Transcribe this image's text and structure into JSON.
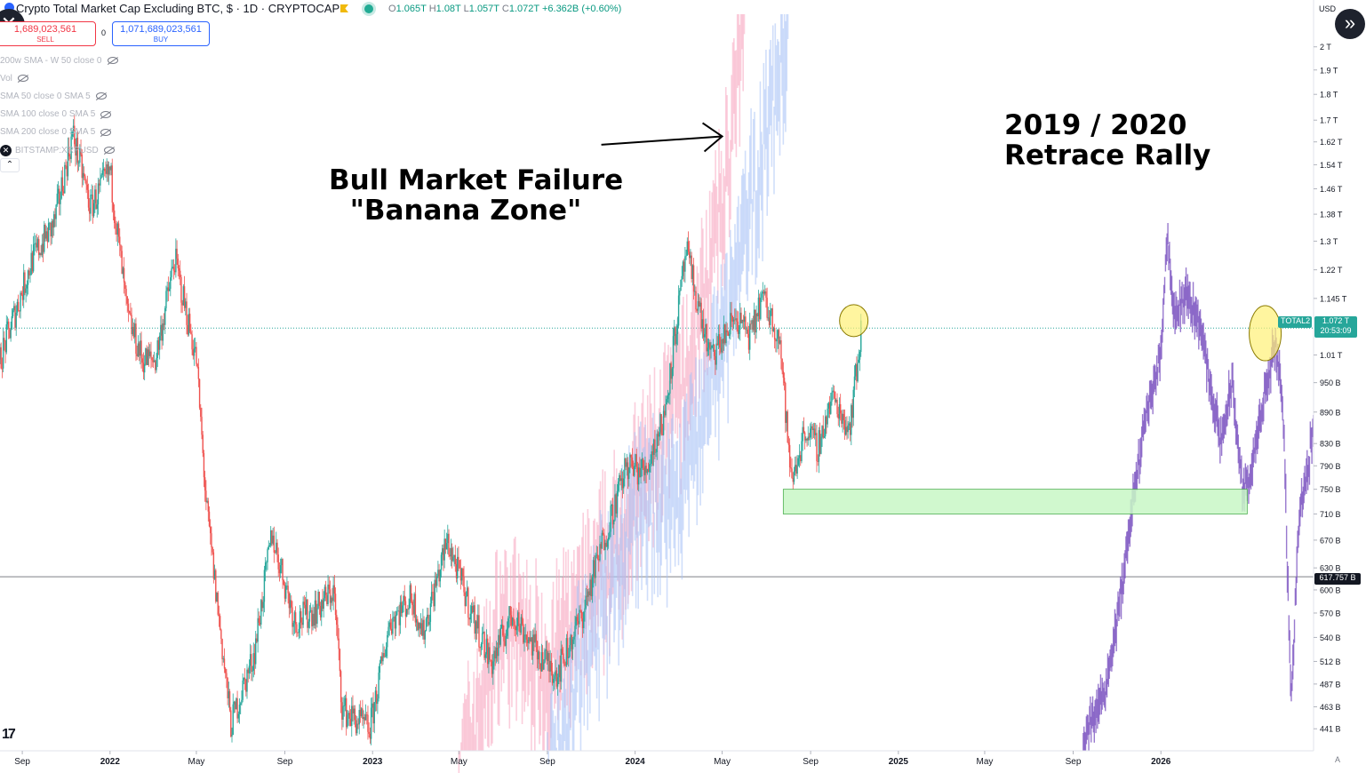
{
  "header": {
    "title": "Crypto Total Market Cap Excluding BTC, $ · 1D · CRYPTOCAP",
    "ohlc": [
      {
        "k": "O",
        "v": "1.065T"
      },
      {
        "k": "H",
        "v": "1.08T"
      },
      {
        "k": "L",
        "v": "1.057T"
      },
      {
        "k": "C",
        "v": "1.072T"
      }
    ],
    "change": "+6.362B (+0.60%)"
  },
  "trade": {
    "sell_price": "1,689,023,561",
    "sell_label": "SELL",
    "spread": "0",
    "buy_price": "1,071,689,023,561",
    "buy_label": "BUY"
  },
  "indicators": [
    {
      "label": "200w SMA - W 50 close 0"
    },
    {
      "label": "Vol"
    },
    {
      "label": "SMA 50 close 0 SMA 5"
    },
    {
      "label": "SMA 100 close 0 SMA 5"
    },
    {
      "label": "SMA 200 close 0 SMA 5"
    },
    {
      "label": "BITSTAMP:XRPUSD"
    }
  ],
  "collapse_icon": "chevron-up-icon",
  "annotations": {
    "banana_line1": "Bull Market Failure",
    "banana_line2": "\"Banana Zone\"",
    "retrace_line1": "2019 / 2020",
    "retrace_line2": "Retrace Rally"
  },
  "price_axis": {
    "currency": "USD",
    "symbol_tag": "TOTAL2",
    "last_price": "1.072 T",
    "countdown": "20:53:09",
    "level_tag": "617.757 B",
    "auto_label": "A"
  },
  "colors": {
    "up": "#26a69a",
    "down": "#ef5350",
    "ghost_pink": "#f7a6c0",
    "ghost_blue": "#a9c3f5",
    "projection": "#7e57c2",
    "zone_fill": "#c8f7c5",
    "zone_border": "#4caf50",
    "circle_fill": "#fff176"
  },
  "chart_data": {
    "type": "candlestick",
    "scale": "log",
    "ylim": [
      420000000000,
      2150000000000
    ],
    "x_range": [
      "2021-08-01",
      "2026-07-31"
    ],
    "y_ticks": [
      {
        "label": "2 T",
        "v": 2000000000000
      },
      {
        "label": "1.9 T",
        "v": 1900000000000
      },
      {
        "label": "1.8 T",
        "v": 1800000000000
      },
      {
        "label": "1.7 T",
        "v": 1700000000000
      },
      {
        "label": "1.62 T",
        "v": 1620000000000
      },
      {
        "label": "1.54 T",
        "v": 1540000000000
      },
      {
        "label": "1.46 T",
        "v": 1460000000000
      },
      {
        "label": "1.38 T",
        "v": 1380000000000
      },
      {
        "label": "1.3 T",
        "v": 1300000000000
      },
      {
        "label": "1.22 T",
        "v": 1220000000000
      },
      {
        "label": "1.145 T",
        "v": 1145000000000
      },
      {
        "label": "1.01 T",
        "v": 1010000000000
      },
      {
        "label": "950 B",
        "v": 950000000000
      },
      {
        "label": "890 B",
        "v": 890000000000
      },
      {
        "label": "830 B",
        "v": 830000000000
      },
      {
        "label": "790 B",
        "v": 790000000000
      },
      {
        "label": "750 B",
        "v": 750000000000
      },
      {
        "label": "710 B",
        "v": 710000000000
      },
      {
        "label": "670 B",
        "v": 670000000000
      },
      {
        "label": "630 B",
        "v": 630000000000
      },
      {
        "label": "600 B",
        "v": 600000000000
      },
      {
        "label": "570 B",
        "v": 570000000000
      },
      {
        "label": "540 B",
        "v": 540000000000
      },
      {
        "label": "512 B",
        "v": 512000000000
      },
      {
        "label": "487 B",
        "v": 487000000000
      },
      {
        "label": "463 B",
        "v": 463000000000
      },
      {
        "label": "441 B",
        "v": 441000000000
      }
    ],
    "x_ticks": [
      {
        "label": "Sep",
        "date": "2021-09-01",
        "bold": false
      },
      {
        "label": "2022",
        "date": "2022-01-01",
        "bold": true
      },
      {
        "label": "May",
        "date": "2022-05-01",
        "bold": false
      },
      {
        "label": "Sep",
        "date": "2022-09-01",
        "bold": false
      },
      {
        "label": "2023",
        "date": "2023-01-01",
        "bold": true
      },
      {
        "label": "May",
        "date": "2023-05-01",
        "bold": false
      },
      {
        "label": "Sep",
        "date": "2023-09-01",
        "bold": false
      },
      {
        "label": "2024",
        "date": "2024-01-01",
        "bold": true
      },
      {
        "label": "May",
        "date": "2024-05-01",
        "bold": false
      },
      {
        "label": "Sep",
        "date": "2024-09-01",
        "bold": false
      },
      {
        "label": "2025",
        "date": "2025-01-01",
        "bold": true
      },
      {
        "label": "May",
        "date": "2025-05-01",
        "bold": false
      },
      {
        "label": "Sep",
        "date": "2025-09-01",
        "bold": false
      },
      {
        "label": "2026",
        "date": "2026-01-01",
        "bold": true
      }
    ],
    "price_path": [
      [
        "2021-08-01",
        1000000000000
      ],
      [
        "2021-09-15",
        1250000000000
      ],
      [
        "2021-10-15",
        1350000000000
      ],
      [
        "2021-11-10",
        1650000000000
      ],
      [
        "2021-12-05",
        1400000000000
      ],
      [
        "2022-01-01",
        1520000000000
      ],
      [
        "2022-01-25",
        1100000000000
      ],
      [
        "2022-02-15",
        1000000000000
      ],
      [
        "2022-03-05",
        1000000000000
      ],
      [
        "2022-04-01",
        1250000000000
      ],
      [
        "2022-05-01",
        1000000000000
      ],
      [
        "2022-05-15",
        720000000000
      ],
      [
        "2022-06-18",
        445000000000
      ],
      [
        "2022-07-20",
        520000000000
      ],
      [
        "2022-08-14",
        680000000000
      ],
      [
        "2022-09-15",
        560000000000
      ],
      [
        "2022-10-15",
        575000000000
      ],
      [
        "2022-11-08",
        600000000000
      ],
      [
        "2022-11-20",
        460000000000
      ],
      [
        "2022-12-28",
        440000000000
      ],
      [
        "2023-01-25",
        560000000000
      ],
      [
        "2023-02-25",
        590000000000
      ],
      [
        "2023-03-12",
        545000000000
      ],
      [
        "2023-04-15",
        670000000000
      ],
      [
        "2023-05-15",
        580000000000
      ],
      [
        "2023-06-15",
        510000000000
      ],
      [
        "2023-07-15",
        570000000000
      ],
      [
        "2023-08-20",
        520000000000
      ],
      [
        "2023-09-15",
        500000000000
      ],
      [
        "2023-10-20",
        570000000000
      ],
      [
        "2023-11-15",
        660000000000
      ],
      [
        "2023-12-20",
        790000000000
      ],
      [
        "2024-01-15",
        780000000000
      ],
      [
        "2024-02-10",
        880000000000
      ],
      [
        "2024-03-12",
        1270000000000
      ],
      [
        "2024-04-15",
        1000000000000
      ],
      [
        "2024-05-20",
        1100000000000
      ],
      [
        "2024-06-10",
        1050000000000
      ],
      [
        "2024-06-25",
        1150000000000
      ],
      [
        "2024-07-20",
        1050000000000
      ],
      [
        "2024-08-05",
        760000000000
      ],
      [
        "2024-08-25",
        860000000000
      ],
      [
        "2024-09-10",
        820000000000
      ],
      [
        "2024-10-01",
        920000000000
      ],
      [
        "2024-10-25",
        860000000000
      ],
      [
        "2024-11-11",
        1072000000000
      ]
    ],
    "ghost_paths": [
      {
        "name": "pink",
        "points": [
          [
            "2023-05-01",
            400000000000
          ],
          [
            "2023-07-01",
            580000000000
          ],
          [
            "2023-09-01",
            520000000000
          ],
          [
            "2023-11-15",
            640000000000
          ],
          [
            "2024-01-15",
            800000000000
          ],
          [
            "2024-03-15",
            1000000000000
          ],
          [
            "2024-05-01",
            1450000000000
          ],
          [
            "2024-06-01",
            2200000000000
          ]
        ]
      },
      {
        "name": "blue",
        "points": [
          [
            "2023-09-01",
            420000000000
          ],
          [
            "2023-11-01",
            560000000000
          ],
          [
            "2024-01-01",
            720000000000
          ],
          [
            "2024-03-01",
            780000000000
          ],
          [
            "2024-05-01",
            1050000000000
          ],
          [
            "2024-06-15",
            1500000000000
          ],
          [
            "2024-08-01",
            2200000000000
          ]
        ]
      }
    ],
    "projection_path": [
      [
        "2025-09-15",
        430000000000
      ],
      [
        "2025-10-15",
        480000000000
      ],
      [
        "2025-11-01",
        560000000000
      ],
      [
        "2025-11-20",
        700000000000
      ],
      [
        "2025-12-10",
        880000000000
      ],
      [
        "2025-12-31",
        1000000000000
      ],
      [
        "2026-01-10",
        1330000000000
      ],
      [
        "2026-01-20",
        1100000000000
      ],
      [
        "2026-02-05",
        1160000000000
      ],
      [
        "2026-02-25",
        1080000000000
      ],
      [
        "2026-03-10",
        950000000000
      ],
      [
        "2026-03-25",
        830000000000
      ],
      [
        "2026-04-10",
        950000000000
      ],
      [
        "2026-04-25",
        740000000000
      ],
      [
        "2026-05-10",
        800000000000
      ],
      [
        "2026-05-25",
        920000000000
      ],
      [
        "2026-06-10",
        1040000000000
      ],
      [
        "2026-06-20",
        900000000000
      ],
      [
        "2026-07-01",
        470000000000
      ],
      [
        "2026-07-12",
        700000000000
      ],
      [
        "2026-07-25",
        790000000000
      ],
      [
        "2026-08-05",
        920000000000
      ],
      [
        "2026-08-15",
        1010000000000
      ],
      [
        "2026-08-20",
        960000000000
      ]
    ],
    "support_zone": {
      "from": "2024-07-25",
      "to": "2026-05-01",
      "top": 750000000000,
      "bottom": 710000000000
    },
    "circles": [
      {
        "date": "2024-10-31",
        "value": 1090000000000
      },
      {
        "date": "2026-05-26",
        "value": 1060000000000
      }
    ],
    "horizontal_levels": [
      {
        "value": 1072000000000,
        "style": "dotted"
      },
      {
        "value": 617757000000,
        "style": "solid"
      }
    ],
    "arrow": {
      "from": [
        "2023-11-15",
        1610000000000
      ],
      "to": [
        "2024-05-01",
        1640000000000
      ]
    }
  }
}
